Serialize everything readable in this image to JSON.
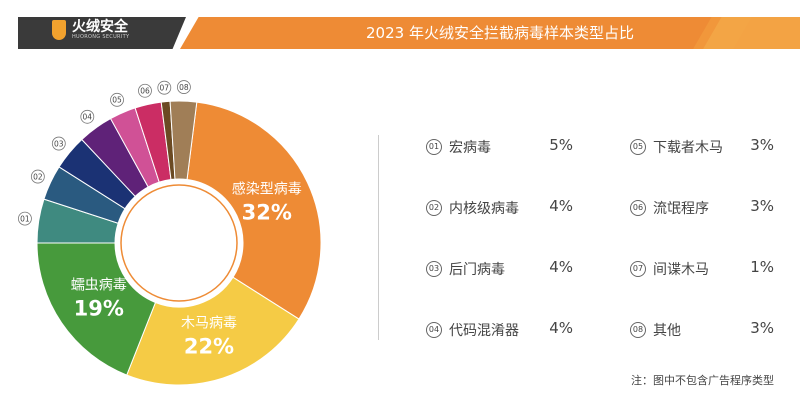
{
  "brand": {
    "name": "火绒安全",
    "sub": "HUORONG SECURITY"
  },
  "chart_data": {
    "type": "pie",
    "title": "2023 年火绒安全拦截病毒样本类型占比",
    "slices": [
      {
        "id": "",
        "label": "感染型病毒",
        "value": 32,
        "pct": "32%",
        "color": "#EE8B35"
      },
      {
        "id": "",
        "label": "木马病毒",
        "value": 22,
        "pct": "22%",
        "color": "#F5CB45"
      },
      {
        "id": "",
        "label": "蠕虫病毒",
        "value": 19,
        "pct": "19%",
        "color": "#479A3C"
      },
      {
        "id": "01",
        "label": "宏病毒",
        "value": 5,
        "pct": "5%",
        "color": "#3F8A80"
      },
      {
        "id": "02",
        "label": "内核级病毒",
        "value": 4,
        "pct": "4%",
        "color": "#2A5A80"
      },
      {
        "id": "03",
        "label": "后门病毒",
        "value": 4,
        "pct": "4%",
        "color": "#1B3274"
      },
      {
        "id": "04",
        "label": "代码混淆器",
        "value": 4,
        "pct": "4%",
        "color": "#5F2278"
      },
      {
        "id": "05",
        "label": "下载者木马",
        "value": 3,
        "pct": "3%",
        "color": "#D05196"
      },
      {
        "id": "06",
        "label": "流氓程序",
        "value": 3,
        "pct": "3%",
        "color": "#CB2D64"
      },
      {
        "id": "07",
        "label": "间谍木马",
        "value": 1,
        "pct": "1%",
        "color": "#6B4A23"
      },
      {
        "id": "08",
        "label": "其他",
        "value": 3,
        "pct": "3%",
        "color": "#A07E57"
      }
    ],
    "note": "注：图中不包含广告程序类型"
  }
}
